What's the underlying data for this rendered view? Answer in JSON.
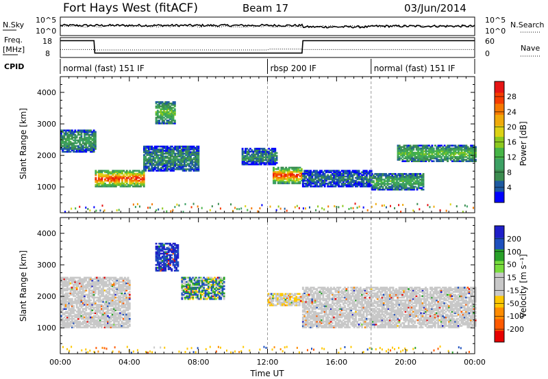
{
  "header": {
    "station": "Fort Hays West (fitACF)",
    "beam": "Beam 17",
    "date": "03/Jun/2014"
  },
  "strip_panels": {
    "nsky": {
      "label": "N.Sky",
      "left_ticks": [
        "10^5",
        "10^0"
      ],
      "right_ticks": [
        "10^5",
        "10^0"
      ],
      "right_label": "N.Search"
    },
    "freq": {
      "label_line1": "Freq.",
      "label_line2": "[MHz]",
      "left_ticks": [
        "18",
        "8"
      ],
      "right_ticks": [
        "60",
        "0"
      ],
      "right_label": "Nave"
    },
    "cpid": {
      "label": "CPID"
    }
  },
  "cpid_segments": [
    {
      "label": "normal (fast) 151 IF",
      "start_hour": 0,
      "end_hour": 12
    },
    {
      "label": "rbsp 200 IF",
      "start_hour": 12,
      "end_hour": 18
    },
    {
      "label": "normal (fast) 151 IF",
      "start_hour": 18,
      "end_hour": 24
    }
  ],
  "colors": {
    "power_scale": [
      "#0000ff",
      "#1e5aa0",
      "#3c8c50",
      "#3ca064",
      "#46b446",
      "#8cc81e",
      "#dcd214",
      "#f0aa0a",
      "#f57800",
      "#f53c00",
      "#e61414"
    ],
    "velocity_scale": [
      "#1e1ec8",
      "#1e50be",
      "#28a028",
      "#78dc3c",
      "#c8c8c8",
      "#c8c8c8",
      "#ffc800",
      "#ff8c00",
      "#ff5a00",
      "#e60000"
    ]
  },
  "chart_data": [
    {
      "type": "heatmap",
      "panel": "power",
      "ylabel": "Slant Range [km]",
      "y_ticks": [
        1000,
        2000,
        3000,
        4000
      ],
      "ylim": [
        180,
        4500
      ],
      "xlim": [
        0,
        24
      ],
      "colorbar": {
        "label": "Power [dB]",
        "ticks": [
          "4",
          "8",
          "12",
          "16",
          "20",
          "24",
          "28"
        ],
        "range": [
          0,
          30
        ]
      },
      "echo_regions": [
        {
          "t_start": 0.0,
          "t_end": 2.0,
          "range_km": [
            2100,
            2800
          ],
          "power_db": 10
        },
        {
          "t_start": 2.0,
          "t_end": 4.8,
          "range_km": [
            1000,
            1500
          ],
          "power_db": 28
        },
        {
          "t_start": 4.8,
          "t_end": 8.0,
          "range_km": [
            1500,
            2300
          ],
          "power_db": 8
        },
        {
          "t_start": 5.5,
          "t_end": 6.6,
          "range_km": [
            3000,
            3700
          ],
          "power_db": 14
        },
        {
          "t_start": 10.5,
          "t_end": 12.5,
          "range_km": [
            1700,
            2200
          ],
          "power_db": 8
        },
        {
          "t_start": 12.3,
          "t_end": 14.0,
          "range_km": [
            1100,
            1600
          ],
          "power_db": 27
        },
        {
          "t_start": 14.0,
          "t_end": 18.0,
          "range_km": [
            1000,
            1500
          ],
          "power_db": 6
        },
        {
          "t_start": 18.0,
          "t_end": 21.0,
          "range_km": [
            900,
            1400
          ],
          "power_db": 12
        },
        {
          "t_start": 19.5,
          "t_end": 24.0,
          "range_km": [
            1800,
            2300
          ],
          "power_db": 14
        }
      ]
    },
    {
      "type": "heatmap",
      "panel": "velocity",
      "xlabel": "Time UT",
      "ylabel": "Slant Range [km]",
      "x_ticks": [
        "00:00",
        "04:00",
        "08:00",
        "12:00",
        "16:00",
        "20:00",
        "00:00"
      ],
      "y_ticks": [
        1000,
        2000,
        3000,
        4000
      ],
      "ylim": [
        180,
        4500
      ],
      "xlim": [
        0,
        24
      ],
      "colorbar": {
        "label": "Velocity [m s⁻¹]",
        "ticks": [
          "200",
          "100",
          "50",
          "15",
          "-15",
          "-50",
          "-100",
          "-200"
        ],
        "range": [
          -250,
          250
        ]
      },
      "echo_regions": [
        {
          "t_start": 0.0,
          "t_end": 4.0,
          "range_km": [
            1000,
            2600
          ],
          "velocity_ms": 0
        },
        {
          "t_start": 5.5,
          "t_end": 6.8,
          "range_km": [
            2800,
            3700
          ],
          "velocity_ms": 150
        },
        {
          "t_start": 7.0,
          "t_end": 9.5,
          "range_km": [
            1900,
            2600
          ],
          "velocity_ms": 50
        },
        {
          "t_start": 12.0,
          "t_end": 14.0,
          "range_km": [
            1700,
            2100
          ],
          "velocity_ms": -10
        },
        {
          "t_start": 14.0,
          "t_end": 24.0,
          "range_km": [
            1000,
            2300
          ],
          "velocity_ms": 0
        }
      ]
    }
  ]
}
